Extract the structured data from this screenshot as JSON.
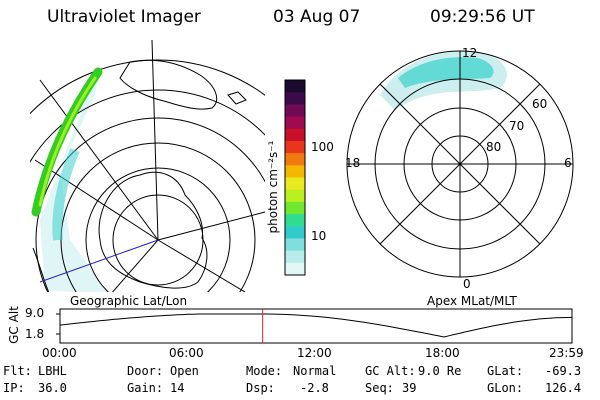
{
  "header": {
    "instrument": "Ultraviolet Imager",
    "date": "03 Aug 07",
    "time": "09:29:56 UT"
  },
  "colorbar": {
    "unit_label": "photon cm⁻²s⁻¹",
    "ticks": [
      "100",
      "10"
    ],
    "colors": [
      "#1a0a2e",
      "#3b0a4a",
      "#700a55",
      "#a00a50",
      "#c8102a",
      "#e8361b",
      "#f07a10",
      "#f5b800",
      "#eaea20",
      "#b8f020",
      "#70e830",
      "#30dd90",
      "#30cccc",
      "#7fdede",
      "#b8ecec",
      "#e2f6f6"
    ]
  },
  "left_map": {
    "caption": "Geographic Lat/Lon"
  },
  "right_map": {
    "caption": "Apex MLat/MLT",
    "mlt_labels": [
      "12",
      "18",
      "6",
      "0"
    ],
    "lat_labels": [
      "60",
      "70",
      "80"
    ]
  },
  "altitude_plot": {
    "ylabel": "GC Alt",
    "yticks": [
      "9.0",
      "1.8"
    ],
    "xticks": [
      "00:00",
      "06:00",
      "12:00",
      "18:00",
      "23:59"
    ],
    "current_time_hours": 9.5
  },
  "status": {
    "flt_label": "Flt:",
    "flt_value": "LBHL",
    "ip_label": "IP:",
    "ip_value": "36.0",
    "door_label": "Door:",
    "door_value": "Open",
    "gain_label": "Gain:",
    "gain_value": "14",
    "mode_label": "Mode:",
    "mode_value": "Normal",
    "dsp_label": "Dsp:",
    "dsp_value": "-2.8",
    "gcalt_label": "GC Alt:",
    "gcalt_value": "9.0 Re",
    "seq_label": "Seq:",
    "seq_value": "39",
    "glat_label": "GLat:",
    "glat_value": "-69.3",
    "glon_label": "GLon:",
    "glon_value": "126.4"
  }
}
